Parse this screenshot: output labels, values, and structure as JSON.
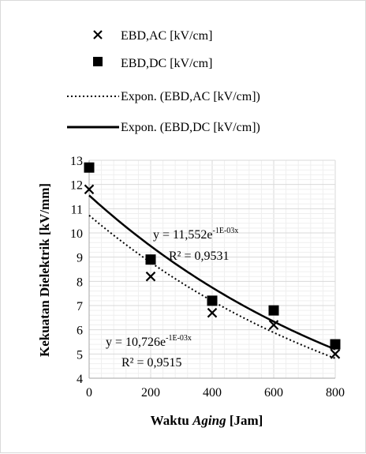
{
  "chart_data": {
    "type": "scatter",
    "title": "",
    "xlabel": {
      "prefix": "Waktu ",
      "italic": "Aging",
      "suffix": " [Jam]"
    },
    "ylabel": "Kekuatan Dielektrik [kV/mm]",
    "xlim": [
      0,
      800
    ],
    "ylim": [
      4,
      13
    ],
    "x_ticks": [
      0,
      200,
      400,
      600,
      800
    ],
    "y_ticks": [
      4,
      5,
      6,
      7,
      8,
      9,
      10,
      11,
      12,
      13
    ],
    "grid": true,
    "legend_position": "top",
    "legend": [
      {
        "name": "EBD,AC [kV/cm]",
        "marker": "x-marker"
      },
      {
        "name": "EBD,DC [kV/cm]",
        "marker": "square-marker"
      },
      {
        "name": "Expon. (EBD,AC [kV/cm])",
        "line": "dotted"
      },
      {
        "name": "Expon. (EBD,DC [kV/cm])",
        "line": "solid"
      }
    ],
    "series": [
      {
        "name": "EBD,AC [kV/cm]",
        "marker": "x",
        "x": [
          0,
          200,
          400,
          600,
          800
        ],
        "y": [
          11.8,
          8.2,
          6.7,
          6.2,
          5.0
        ]
      },
      {
        "name": "EBD,DC [kV/cm]",
        "marker": "square",
        "x": [
          0,
          200,
          400,
          600,
          800
        ],
        "y": [
          12.7,
          8.9,
          7.2,
          6.8,
          5.4
        ]
      }
    ],
    "trendlines": [
      {
        "name": "Expon. (EBD,AC [kV/cm])",
        "style": "dotted",
        "a": 10.726,
        "b": -0.001
      },
      {
        "name": "Expon. (EBD,DC [kV/cm])",
        "style": "solid",
        "a": 11.552,
        "b": -0.001
      }
    ],
    "annotations": [
      {
        "id": "dc",
        "eq_base": "y = 11,552e",
        "eq_exp": "-1E-03x",
        "r2": "R² = 0,9531"
      },
      {
        "id": "ac",
        "eq_base": "y = 10,726e",
        "eq_exp": "-1E-03x",
        "r2": "R² = 0,9515"
      }
    ]
  }
}
